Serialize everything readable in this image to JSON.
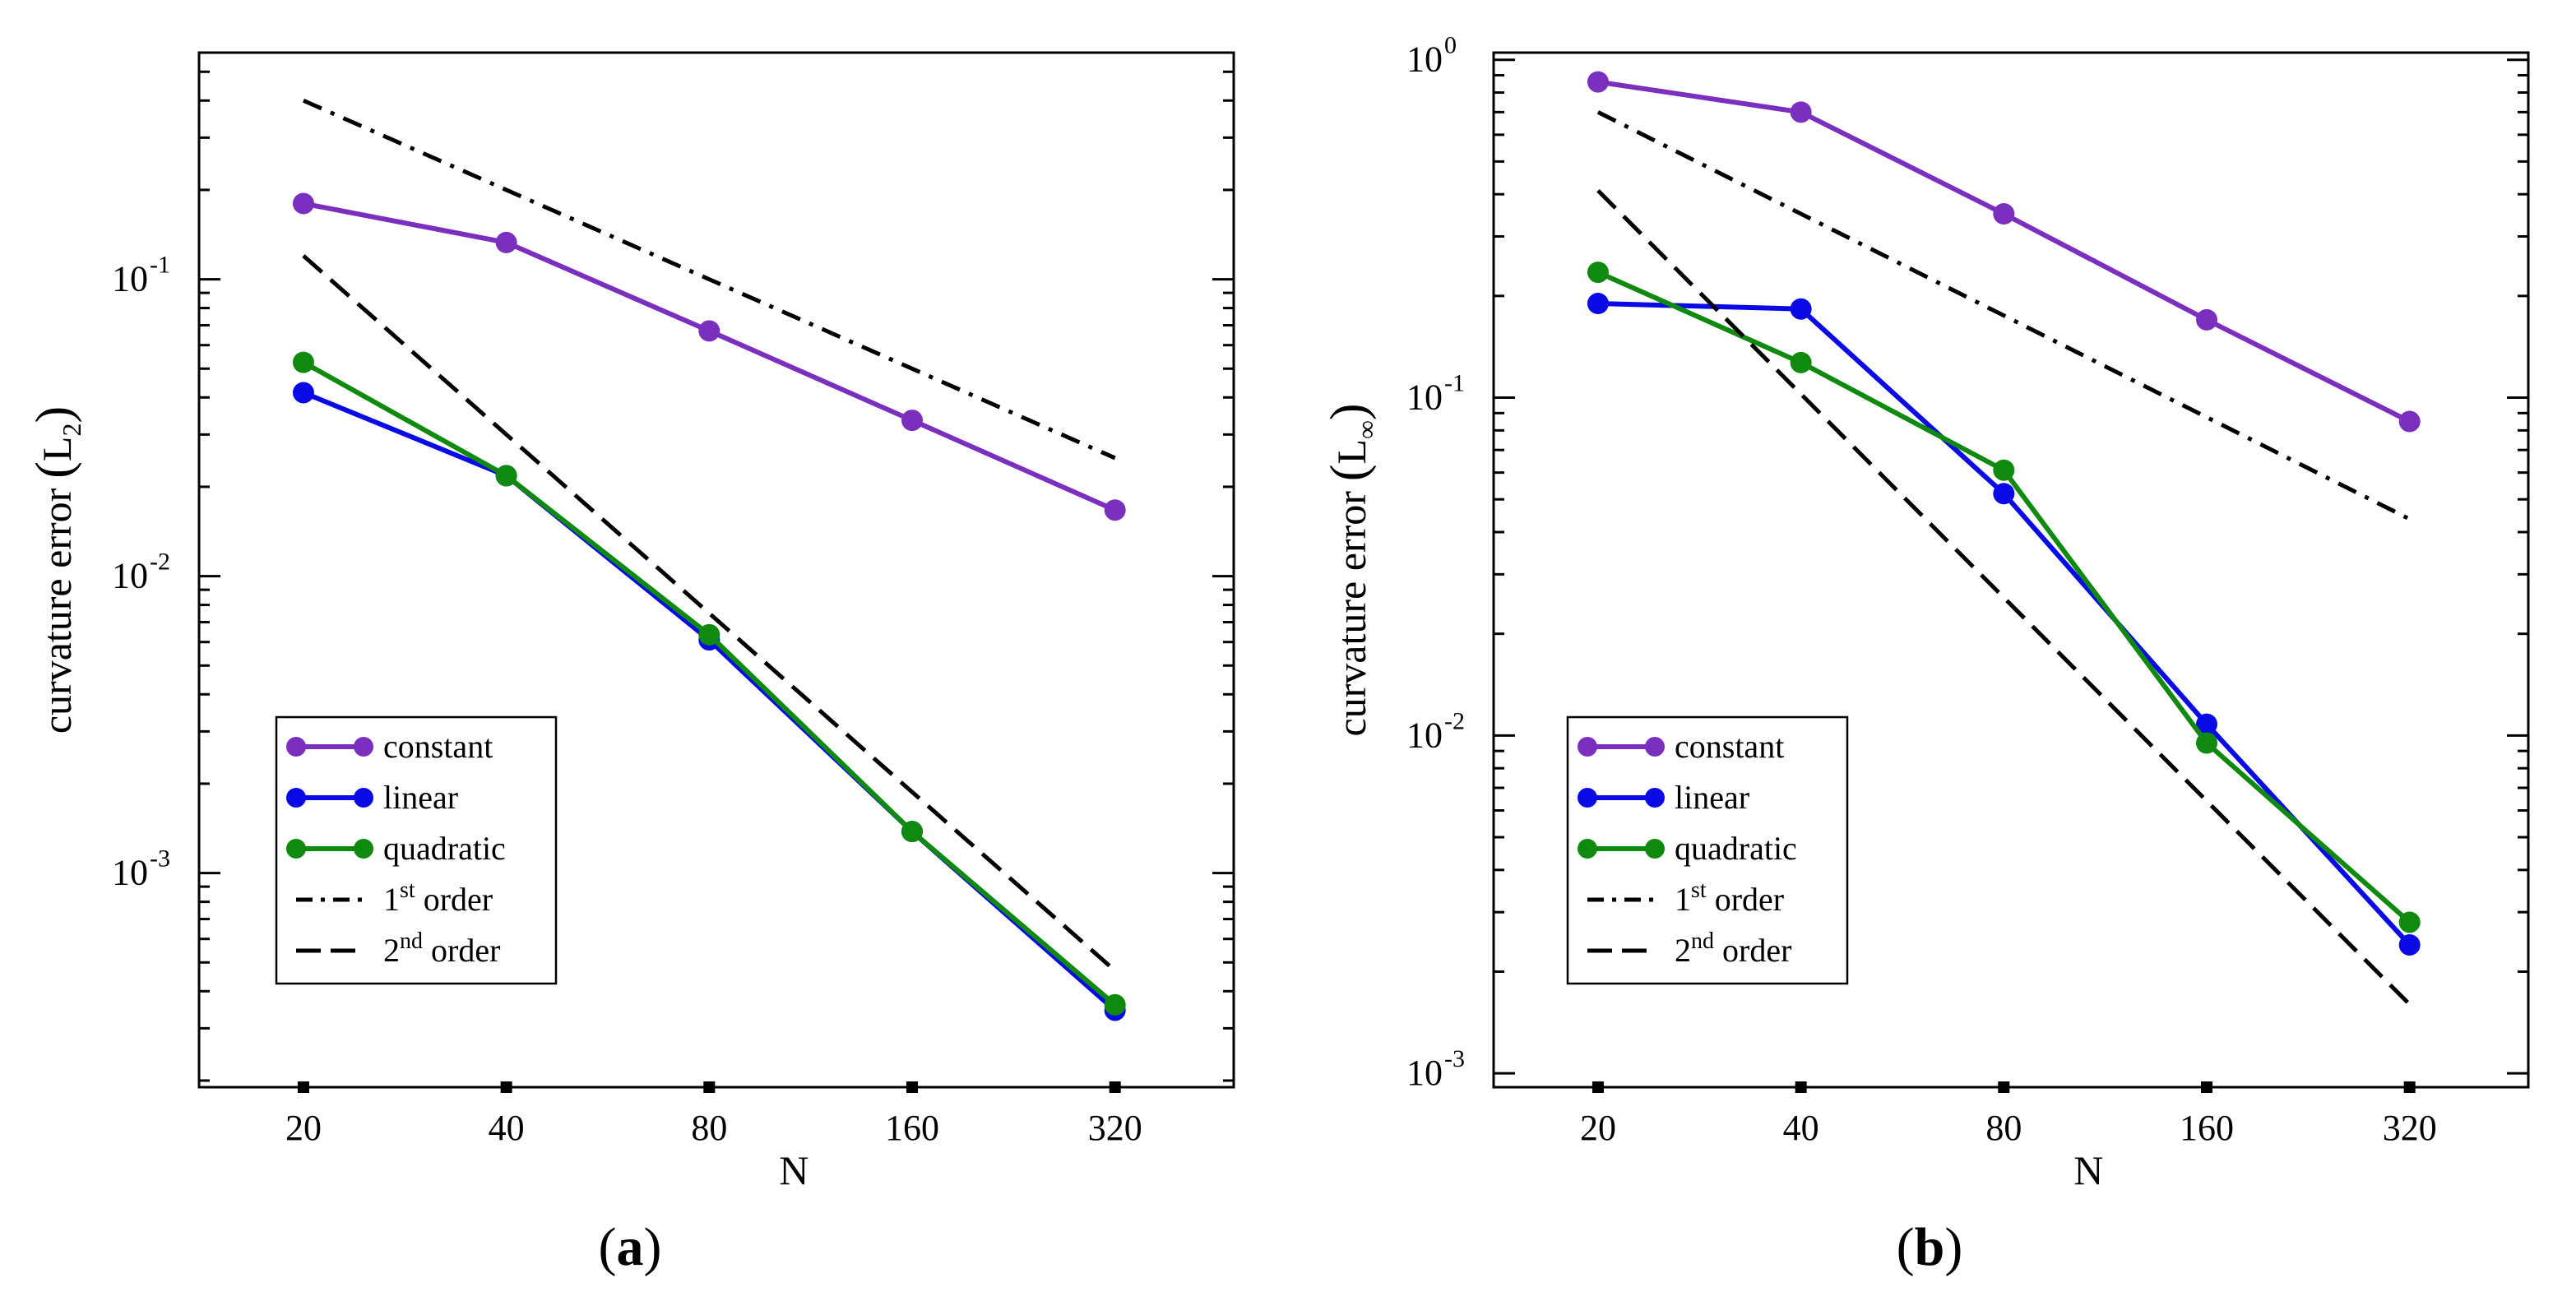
{
  "chart_data": [
    {
      "type": "line",
      "panel_label_open": "(",
      "panel_label_letter": "a",
      "panel_label_close": ")",
      "xlabel": "N",
      "ylabel": "curvature error",
      "ylabel_norm": "L",
      "ylabel_norm_sub": "2",
      "x_scale": "log",
      "y_scale": "log",
      "categories": [
        "20",
        "40",
        "80",
        "160",
        "320"
      ],
      "x": [
        20,
        40,
        80,
        160,
        320
      ],
      "xlim": [
        14,
        480
      ],
      "ylim": [
        0.00019,
        0.58
      ],
      "yticks": [
        {
          "base": "10",
          "exp": "-1",
          "value": 0.1
        },
        {
          "base": "10",
          "exp": "-2",
          "value": 0.01
        },
        {
          "base": "10",
          "exp": "-3",
          "value": 0.001
        }
      ],
      "series": [
        {
          "name": "constant",
          "style": "marker-line",
          "color": "#7b2fbf",
          "values": [
            0.18,
            0.133,
            0.067,
            0.0335,
            0.0167
          ]
        },
        {
          "name": "linear",
          "style": "marker-line",
          "color": "#0a0ae6",
          "values": [
            0.0415,
            0.0218,
            0.0061,
            0.00138,
            0.000345
          ]
        },
        {
          "name": "quadratic",
          "style": "marker-line",
          "color": "#0f8a0f",
          "values": [
            0.0525,
            0.0218,
            0.00635,
            0.00138,
            0.00036
          ]
        },
        {
          "name": "1",
          "name_sup": "st",
          "name_suffix": " order",
          "style": "dashdot",
          "color": "#000000",
          "values": [
            0.4,
            0.2,
            0.1,
            0.05,
            0.025
          ]
        },
        {
          "name": "2",
          "name_sup": "nd",
          "name_suffix": " order",
          "style": "dashed",
          "color": "#000000",
          "values": [
            0.12,
            0.03,
            0.0075,
            0.001875,
            0.000469
          ]
        }
      ],
      "legend": "lower-left"
    },
    {
      "type": "line",
      "panel_label_open": "(",
      "panel_label_letter": "b",
      "panel_label_close": ")",
      "xlabel": "N",
      "ylabel": "curvature error",
      "ylabel_norm": "L",
      "ylabel_norm_sub": "∞",
      "x_scale": "log",
      "y_scale": "log",
      "categories": [
        "20",
        "40",
        "80",
        "160",
        "320"
      ],
      "x": [
        20,
        40,
        80,
        160,
        320
      ],
      "xlim": [
        14,
        480
      ],
      "ylim": [
        0.00091,
        1.05
      ],
      "yticks": [
        {
          "base": "10",
          "exp": "0",
          "value": 1
        },
        {
          "base": "10",
          "exp": "-1",
          "value": 0.1
        },
        {
          "base": "10",
          "exp": "-2",
          "value": 0.01
        },
        {
          "base": "10",
          "exp": "-3",
          "value": 0.001
        }
      ],
      "series": [
        {
          "name": "constant",
          "style": "marker-line",
          "color": "#7b2fbf",
          "values": [
            0.86,
            0.7,
            0.35,
            0.17,
            0.085
          ]
        },
        {
          "name": "linear",
          "style": "marker-line",
          "color": "#0a0ae6",
          "values": [
            0.19,
            0.183,
            0.052,
            0.0108,
            0.0024
          ]
        },
        {
          "name": "quadratic",
          "style": "marker-line",
          "color": "#0f8a0f",
          "values": [
            0.235,
            0.127,
            0.061,
            0.0095,
            0.0028
          ]
        },
        {
          "name": "1",
          "name_sup": "st",
          "name_suffix": " order",
          "style": "dashdot",
          "color": "#000000",
          "values": [
            0.7,
            0.35,
            0.175,
            0.0875,
            0.0437
          ]
        },
        {
          "name": "2",
          "name_sup": "nd",
          "name_suffix": " order",
          "style": "dashed",
          "color": "#000000",
          "values": [
            0.41,
            0.1025,
            0.0256,
            0.0064,
            0.0016
          ]
        }
      ],
      "legend": "lower-left"
    }
  ]
}
